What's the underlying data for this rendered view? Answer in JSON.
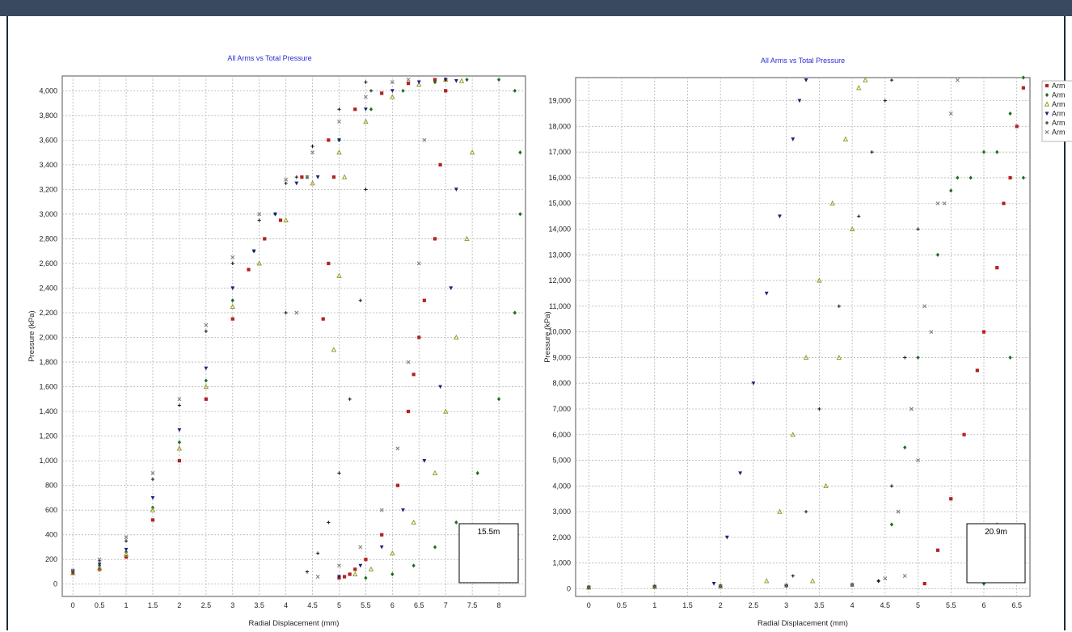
{
  "chart_data": [
    {
      "type": "scatter",
      "title": "All Arms vs Total Pressure",
      "xlabel": "Radial Displacement (mm)",
      "ylabel": "Pressure (kPa)",
      "xlim": [
        -0.2,
        8.5
      ],
      "ylim": [
        -100,
        4120
      ],
      "x_ticks": [
        "0",
        "0.5",
        "1",
        "1.5",
        "2",
        "2.5",
        "3",
        "3.5",
        "4",
        "4.5",
        "5",
        "5.5",
        "6",
        "6.5",
        "7",
        "7.5",
        "8"
      ],
      "y_ticks": [
        "0",
        "200",
        "400",
        "600",
        "800",
        "1,000",
        "1,200",
        "1,400",
        "1,600",
        "1,800",
        "2,000",
        "2,200",
        "2,400",
        "2,600",
        "2,800",
        "3,000",
        "3,200",
        "3,400",
        "3,600",
        "3,800",
        "4,000"
      ],
      "grid": true,
      "annotation": "15.5m",
      "series": [
        {
          "color": "#b22222",
          "marker": "square",
          "x": [
            0,
            0.5,
            1.0,
            1.5,
            2.0,
            2.5,
            3.0,
            3.3,
            3.6,
            3.9,
            4.3,
            4.8,
            5.3,
            5.8,
            6.3,
            6.8,
            7.0,
            4.7,
            4.8,
            4.9,
            5.0,
            5.1,
            5.2,
            5.3,
            5.5,
            5.8,
            6.1,
            6.3,
            6.4,
            6.5,
            6.6,
            6.8,
            6.9,
            7.0
          ],
          "y": [
            90,
            120,
            220,
            520,
            1000,
            1500,
            2150,
            2550,
            2800,
            2950,
            3300,
            3600,
            3850,
            3980,
            4060,
            4090,
            4090,
            2150,
            2600,
            3300,
            50,
            60,
            80,
            120,
            200,
            400,
            800,
            1400,
            1700,
            2000,
            2300,
            2800,
            3400,
            4000
          ]
        },
        {
          "color": "#1f6b1f",
          "marker": "diamond",
          "x": [
            0,
            0.5,
            1.0,
            1.5,
            2.0,
            2.5,
            3.0,
            3.4,
            3.8,
            4.4,
            5.0,
            5.6,
            6.2,
            6.8,
            7.4,
            8.0,
            8.3,
            8.4,
            5.5,
            6.0,
            6.4,
            6.8,
            7.2,
            7.6,
            8.0,
            8.3,
            8.4
          ],
          "y": [
            100,
            150,
            260,
            620,
            1150,
            1650,
            2300,
            2700,
            3000,
            3300,
            3600,
            3850,
            4000,
            4070,
            4090,
            4090,
            4000,
            3500,
            50,
            80,
            150,
            300,
            500,
            900,
            1500,
            2200,
            3000
          ]
        },
        {
          "color": "#9a9a2a",
          "marker": "triangle",
          "x": [
            0,
            0.5,
            1.0,
            1.5,
            2.0,
            2.5,
            3.0,
            3.5,
            4.0,
            4.5,
            5.0,
            5.5,
            6.0,
            6.5,
            7.0,
            7.3,
            4.9,
            5.0,
            5.1,
            5.3,
            5.6,
            6.0,
            6.4,
            6.8,
            7.0,
            7.2,
            7.4,
            7.5
          ],
          "y": [
            90,
            130,
            240,
            600,
            1100,
            1600,
            2250,
            2600,
            2950,
            3250,
            3500,
            3750,
            3950,
            4050,
            4090,
            4080,
            1900,
            2500,
            3300,
            80,
            120,
            250,
            500,
            900,
            1400,
            2000,
            2800,
            3500
          ]
        },
        {
          "color": "#1a237e",
          "marker": "triangle-down",
          "x": [
            0,
            0.5,
            1.0,
            1.5,
            2.0,
            2.5,
            3.0,
            3.4,
            3.8,
            4.2,
            4.6,
            5.0,
            5.5,
            6.0,
            6.5,
            7.0,
            7.2,
            5.0,
            5.4,
            5.8,
            6.2,
            6.6,
            6.9,
            7.1,
            7.2
          ],
          "y": [
            100,
            160,
            280,
            700,
            1250,
            1750,
            2400,
            2700,
            3000,
            3250,
            3300,
            3600,
            3850,
            4000,
            4070,
            4090,
            4080,
            60,
            150,
            300,
            600,
            1000,
            1600,
            2400,
            3200
          ]
        },
        {
          "color": "#111111",
          "marker": "plus",
          "x": [
            0,
            0.5,
            1.0,
            1.5,
            2.0,
            2.5,
            3.0,
            3.5,
            4.0,
            4.5,
            5.0,
            5.5,
            4.0,
            4.2,
            4.4,
            4.6,
            4.8,
            5.0,
            5.2,
            5.4,
            5.5,
            5.6
          ],
          "y": [
            110,
            190,
            350,
            850,
            1450,
            2050,
            2600,
            2950,
            3250,
            3550,
            3850,
            4070,
            2200,
            3300,
            100,
            250,
            500,
            900,
            1500,
            2300,
            3200,
            4000
          ]
        },
        {
          "color": "#777777",
          "marker": "x",
          "x": [
            0,
            0.5,
            1.0,
            1.5,
            2.0,
            2.5,
            3.0,
            3.5,
            4.0,
            4.5,
            5.0,
            5.5,
            6.0,
            6.3,
            4.2,
            4.4,
            4.6,
            5.0,
            5.4,
            5.8,
            6.1,
            6.3,
            6.5,
            6.6
          ],
          "y": [
            110,
            200,
            380,
            900,
            1500,
            2100,
            2650,
            3000,
            3280,
            3500,
            3750,
            3950,
            4070,
            4090,
            2200,
            3300,
            60,
            150,
            300,
            600,
            1100,
            1800,
            2600,
            3600
          ]
        }
      ]
    },
    {
      "type": "scatter",
      "title": "All Arms vs Total Pressure",
      "xlabel": "Radial Displacement (mm)",
      "ylabel": "Pressure (kPa)",
      "xlim": [
        -0.2,
        6.7
      ],
      "ylim": [
        -300,
        19900
      ],
      "x_ticks": [
        "0",
        "0.5",
        "1",
        "1.5",
        "2",
        "2.5",
        "3",
        "3.5",
        "4",
        "4.5",
        "5",
        "5.5",
        "6",
        "6.5"
      ],
      "y_ticks": [
        "0",
        "1,000",
        "2,000",
        "3,000",
        "4,000",
        "5,000",
        "6,000",
        "7,000",
        "8,000",
        "9,000",
        "10,000",
        "11,000",
        "12,000",
        "13,000",
        "14,000",
        "15,000",
        "16,000",
        "17,000",
        "18,000",
        "19,000"
      ],
      "grid": true,
      "annotation": "20.9m",
      "legend": [
        "Arm",
        "Arm",
        "Arm",
        "Arm",
        "Arm",
        "Arm"
      ],
      "legend_position": "right",
      "series": [
        {
          "color": "#b22222",
          "marker": "square",
          "x": [
            0,
            1,
            2,
            3,
            4,
            5.1,
            5.3,
            5.5,
            5.7,
            5.9,
            6.0,
            6.2,
            6.3,
            6.4,
            6.5,
            6.6
          ],
          "y": [
            50,
            80,
            100,
            120,
            150,
            200,
            1500,
            3500,
            6000,
            8500,
            10000,
            12500,
            15000,
            16000,
            18000,
            19500
          ]
        },
        {
          "color": "#1f6b1f",
          "marker": "diamond",
          "x": [
            0,
            1,
            2,
            3,
            4,
            4.4,
            4.6,
            4.8,
            5.0,
            5.3,
            5.5,
            5.6,
            5.8,
            6.0,
            6.2,
            6.4,
            6.6,
            6.0,
            6.2,
            6.4,
            6.6
          ],
          "y": [
            50,
            80,
            100,
            120,
            150,
            300,
            2500,
            5500,
            9000,
            13000,
            15500,
            16000,
            16000,
            17000,
            17000,
            18500,
            19900,
            200,
            2500,
            9000,
            16000
          ]
        },
        {
          "color": "#9a9a2a",
          "marker": "triangle",
          "x": [
            0,
            1,
            2,
            2.7,
            2.9,
            3.1,
            3.3,
            3.5,
            3.7,
            3.9,
            4.1,
            4.2,
            3.4,
            3.6,
            3.8,
            4.0
          ],
          "y": [
            50,
            80,
            100,
            300,
            3000,
            6000,
            9000,
            12000,
            15000,
            17500,
            19500,
            19800,
            300,
            4000,
            9000,
            14000
          ]
        },
        {
          "color": "#1a237e",
          "marker": "triangle-down",
          "x": [
            0,
            1,
            1.9,
            2.1,
            2.3,
            2.5,
            2.7,
            2.9,
            3.1,
            3.2,
            3.3
          ],
          "y": [
            50,
            80,
            200,
            2000,
            4500,
            8000,
            11500,
            14500,
            17500,
            19000,
            19800
          ]
        },
        {
          "color": "#111111",
          "marker": "plus",
          "x": [
            0,
            1,
            2,
            3,
            3.1,
            3.3,
            3.5,
            3.8,
            4.1,
            4.3,
            4.5,
            4.6,
            4.4,
            4.6,
            4.8,
            5.0
          ],
          "y": [
            50,
            80,
            100,
            120,
            500,
            3000,
            7000,
            11000,
            14500,
            17000,
            19000,
            19800,
            300,
            4000,
            9000,
            14000
          ]
        },
        {
          "color": "#777777",
          "marker": "x",
          "x": [
            0,
            1,
            2,
            3,
            4,
            4.5,
            4.7,
            4.9,
            5.1,
            5.3,
            5.5,
            5.6,
            4.8,
            5.0,
            5.2,
            5.4
          ],
          "y": [
            50,
            80,
            100,
            120,
            150,
            400,
            3000,
            7000,
            11000,
            15000,
            18500,
            19800,
            500,
            5000,
            10000,
            15000
          ]
        }
      ]
    }
  ]
}
